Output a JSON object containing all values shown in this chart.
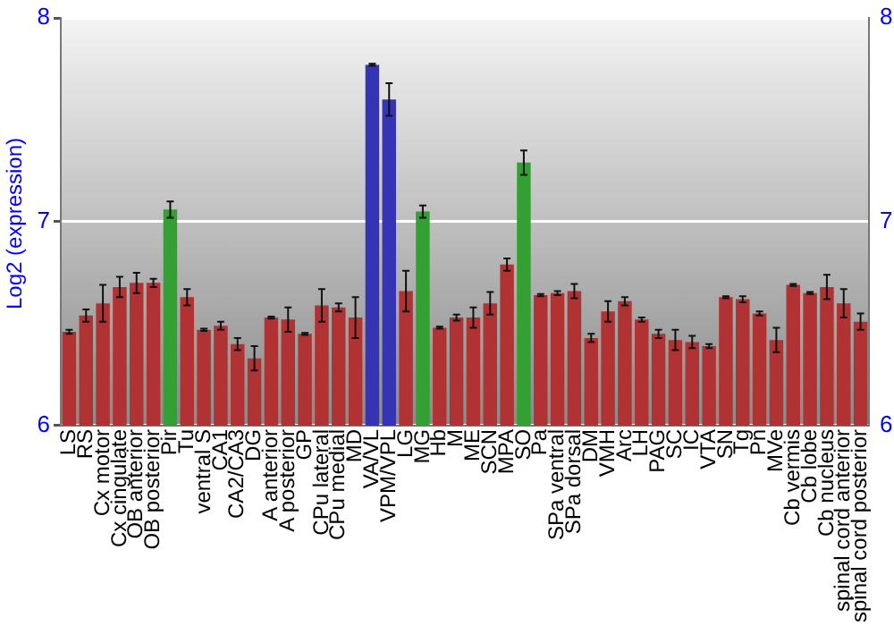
{
  "chart_data": {
    "type": "bar",
    "ylabel": "Log2 (expression)",
    "categories": [
      "LS",
      "RS",
      "Cx motor",
      "Cx cingulate",
      "OB anterior",
      "OB posterior",
      "Pir",
      "Tu",
      "ventral S",
      "CA1",
      "CA2/CA3",
      "DG",
      "A anterior",
      "A posterior",
      "GP",
      "CPu lateral",
      "CPu medial",
      "MD",
      "VA/VL",
      "VPM/VPL",
      "LG",
      "MG",
      "Hb",
      "M",
      "ME",
      "SCN",
      "MPA",
      "SO",
      "Pa",
      "SPa ventral",
      "SPa dorsal",
      "DM",
      "VMH",
      "Arc",
      "LH",
      "PAG",
      "SC",
      "IC",
      "VTA",
      "SN",
      "Tg",
      "Pn",
      "MVe",
      "Cb vermis",
      "Cb lobe",
      "Cb nucleus",
      "spinal cord anterior",
      "spinal cord posterior"
    ],
    "values": [
      6.46,
      6.54,
      6.6,
      6.68,
      6.7,
      6.7,
      7.06,
      6.63,
      6.47,
      6.49,
      6.4,
      6.33,
      6.53,
      6.52,
      6.45,
      6.59,
      6.58,
      6.53,
      7.77,
      7.6,
      6.66,
      7.05,
      6.48,
      6.53,
      6.53,
      6.6,
      6.79,
      7.29,
      6.64,
      6.65,
      6.66,
      6.43,
      6.56,
      6.61,
      6.52,
      6.45,
      6.42,
      6.41,
      6.39,
      6.63,
      6.62,
      6.55,
      6.42,
      6.69,
      6.65,
      6.68,
      6.6,
      6.51
    ],
    "errors": [
      0.01,
      0.03,
      0.09,
      0.05,
      0.05,
      0.02,
      0.04,
      0.04,
      0.005,
      0.02,
      0.03,
      0.06,
      0.005,
      0.06,
      0.005,
      0.08,
      0.02,
      0.1,
      0.005,
      0.08,
      0.1,
      0.03,
      0.005,
      0.015,
      0.05,
      0.055,
      0.03,
      0.06,
      0.005,
      0.01,
      0.035,
      0.02,
      0.05,
      0.02,
      0.01,
      0.02,
      0.05,
      0.03,
      0.01,
      0.005,
      0.015,
      0.01,
      0.06,
      0.005,
      0.005,
      0.06,
      0.07,
      0.04
    ],
    "colors": [
      "#b03232",
      "#b03232",
      "#b03232",
      "#b03232",
      "#b03232",
      "#b03232",
      "#33a033",
      "#b03232",
      "#b03232",
      "#b03232",
      "#b03232",
      "#b03232",
      "#b03232",
      "#b03232",
      "#b03232",
      "#b03232",
      "#b03232",
      "#b03232",
      "#3434b4",
      "#3434b4",
      "#b03232",
      "#33a033",
      "#b03232",
      "#b03232",
      "#b03232",
      "#b03232",
      "#b03232",
      "#33a033",
      "#b03232",
      "#b03232",
      "#b03232",
      "#b03232",
      "#b03232",
      "#b03232",
      "#b03232",
      "#b03232",
      "#b03232",
      "#b03232",
      "#b03232",
      "#b03232",
      "#b03232",
      "#b03232",
      "#b03232",
      "#b03232",
      "#b03232",
      "#b03232",
      "#b03232",
      "#b03232"
    ],
    "ylim": [
      6,
      8
    ],
    "yticks": [
      6,
      7,
      8
    ],
    "y2lim": [
      6,
      8
    ],
    "y2ticks": [
      6,
      7,
      8
    ],
    "grid": "y"
  }
}
